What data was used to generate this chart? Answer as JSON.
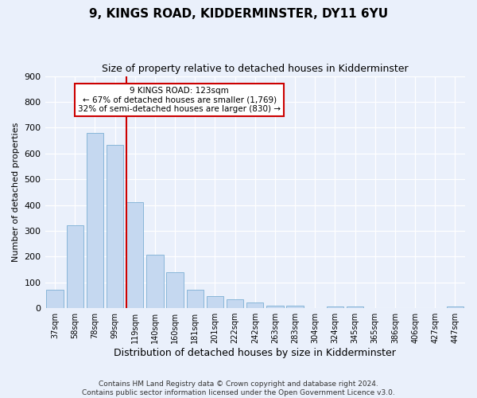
{
  "title": "9, KINGS ROAD, KIDDERMINSTER, DY11 6YU",
  "subtitle": "Size of property relative to detached houses in Kidderminster",
  "xlabel": "Distribution of detached houses by size in Kidderminster",
  "ylabel": "Number of detached properties",
  "categories": [
    "37sqm",
    "58sqm",
    "78sqm",
    "99sqm",
    "119sqm",
    "140sqm",
    "160sqm",
    "181sqm",
    "201sqm",
    "222sqm",
    "242sqm",
    "263sqm",
    "283sqm",
    "304sqm",
    "324sqm",
    "345sqm",
    "365sqm",
    "386sqm",
    "406sqm",
    "427sqm",
    "447sqm"
  ],
  "values": [
    72,
    322,
    680,
    632,
    410,
    207,
    138,
    70,
    47,
    35,
    22,
    11,
    8,
    0,
    7,
    5,
    0,
    0,
    0,
    0,
    7
  ],
  "bar_color": "#c5d8f0",
  "bar_edge_color": "#7bafd4",
  "marker_label": "9 KINGS ROAD: 123sqm",
  "annotation_line1": "← 67% of detached houses are smaller (1,769)",
  "annotation_line2": "32% of semi-detached houses are larger (830) →",
  "vline_color": "#cc0000",
  "box_edge_color": "#cc0000",
  "ylim": [
    0,
    900
  ],
  "yticks": [
    0,
    100,
    200,
    300,
    400,
    500,
    600,
    700,
    800,
    900
  ],
  "footer_line1": "Contains HM Land Registry data © Crown copyright and database right 2024.",
  "footer_line2": "Contains public sector information licensed under the Open Government Licence v3.0.",
  "bg_color": "#eaf0fb",
  "plot_bg_color": "#eaf0fb",
  "title_fontsize": 11,
  "subtitle_fontsize": 9
}
